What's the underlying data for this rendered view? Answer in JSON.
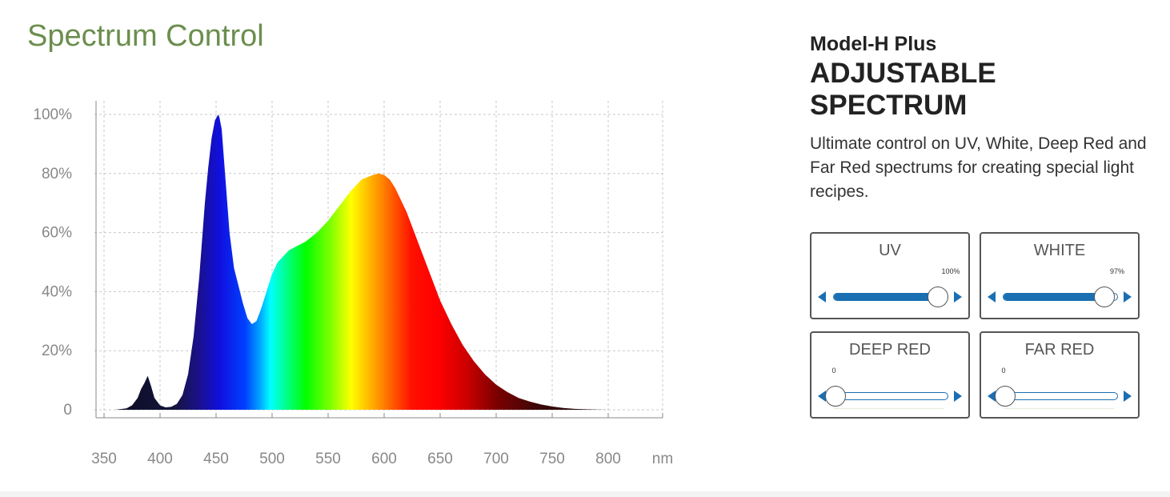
{
  "page": {
    "title": "Spectrum Control"
  },
  "info": {
    "model": "Model-H  Plus",
    "heading": "ADJUSTABLE SPECTRUM",
    "description": "Ultimate control on UV, White, Deep Red and Far Red spectrums for creating special light recipes."
  },
  "controls": [
    {
      "label": "UV",
      "value_label": "100%",
      "value": 100
    },
    {
      "label": "WHITE",
      "value_label": "97%",
      "value": 97
    },
    {
      "label": "DEEP RED",
      "value_label": "0",
      "value": 0
    },
    {
      "label": "FAR RED",
      "value_label": "0",
      "value": 0
    }
  ],
  "colors": {
    "title": "#6b8e4e",
    "slider": "#1a6fb3"
  },
  "chart_data": {
    "type": "area",
    "title": "",
    "xlabel": "nm",
    "ylabel": "",
    "xlim": [
      350,
      800
    ],
    "ylim": [
      0,
      100
    ],
    "x_ticks": [
      "350",
      "400",
      "450",
      "500",
      "550",
      "600",
      "650",
      "700",
      "750",
      "800"
    ],
    "x_unit": "nm",
    "y_ticks": [
      "0",
      "20%",
      "40%",
      "60%",
      "80%",
      "100%"
    ],
    "grid": true,
    "series": [
      {
        "x": [
          360,
          370,
          375,
          380,
          383,
          386,
          389,
          392,
          395,
          400,
          405,
          410,
          415,
          420,
          425,
          430,
          435,
          440,
          443,
          446,
          449,
          452,
          453,
          455,
          458,
          462,
          466,
          470,
          474,
          478,
          482,
          486,
          490,
          495,
          500,
          505,
          510,
          515,
          520,
          525,
          530,
          540,
          550,
          560,
          570,
          580,
          590,
          595,
          600,
          605,
          610,
          620,
          630,
          640,
          650,
          660,
          670,
          680,
          690,
          700,
          710,
          720,
          730,
          740,
          750,
          760,
          770,
          780,
          790,
          800
        ],
        "y": [
          0,
          0.5,
          1.5,
          4,
          7,
          9,
          11.5,
          8,
          4,
          1.5,
          0.8,
          1,
          2,
          5,
          12,
          25,
          45,
          70,
          82,
          92,
          98,
          100,
          99,
          95,
          80,
          60,
          48,
          42,
          36,
          31,
          29,
          30,
          34,
          40,
          46,
          50,
          52,
          54,
          55,
          56,
          57,
          60,
          64,
          69,
          74,
          78,
          79.5,
          80,
          79.5,
          78,
          75,
          67,
          57,
          47,
          37,
          29,
          22,
          16.5,
          12,
          8.5,
          6,
          4,
          2.8,
          1.8,
          1.1,
          0.6,
          0.3,
          0.15,
          0.05,
          0
        ]
      }
    ]
  }
}
